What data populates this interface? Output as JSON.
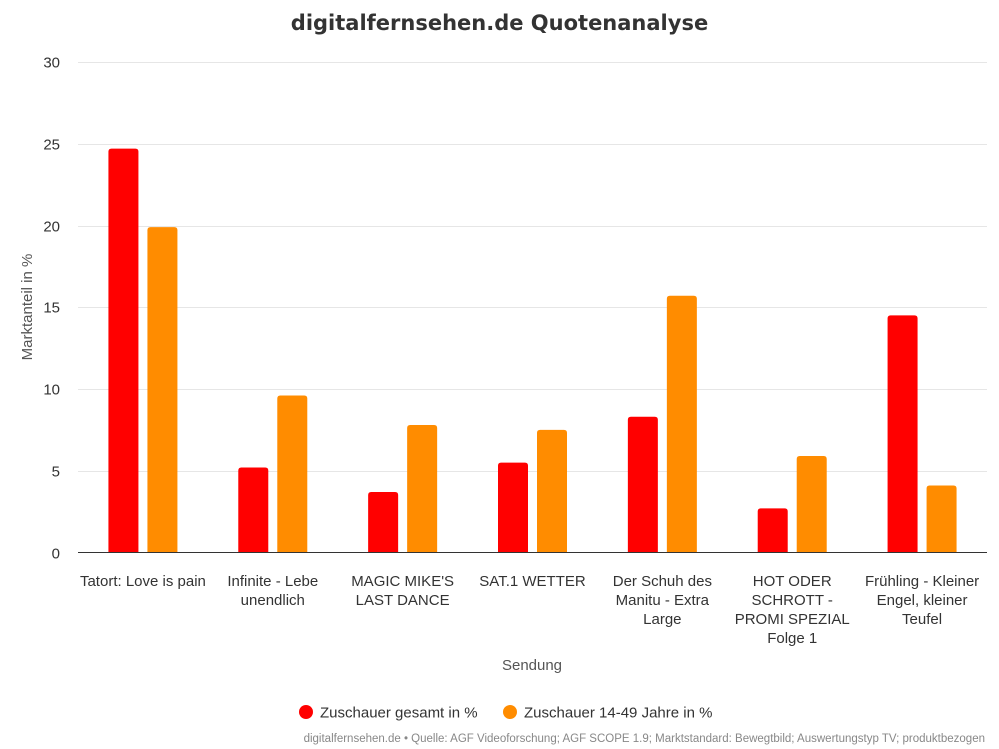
{
  "chart_data": {
    "type": "bar",
    "title": "digitalfernsehen.de Quotenanalyse",
    "xlabel": "Sendung",
    "ylabel": "Marktanteil in %",
    "ylim": [
      0,
      30
    ],
    "yticks": [
      0,
      5,
      10,
      15,
      20,
      25,
      30
    ],
    "grid": true,
    "legend_position": "bottom-center",
    "categories": [
      "Tatort: Love is pain",
      "Infinite - Lebe unendlich",
      "MAGIC MIKE'S LAST DANCE",
      "SAT.1 WETTER",
      "Der Schuh des Manitu - Extra Large",
      "HOT ODER SCHROTT - PROMI SPEZIAL Folge 1",
      "Frühling - Kleiner Engel, kleiner Teufel"
    ],
    "category_lines": [
      [
        "Tatort: Love is pain"
      ],
      [
        "Infinite - Lebe",
        "unendlich"
      ],
      [
        "MAGIC MIKE'S",
        "LAST DANCE"
      ],
      [
        "SAT.1 WETTER"
      ],
      [
        "Der Schuh des",
        "Manitu - Extra",
        "Large"
      ],
      [
        "HOT ODER",
        "SCHROTT -",
        "PROMI SPEZIAL",
        "Folge 1"
      ],
      [
        "Frühling - Kleiner",
        "Engel, kleiner",
        "Teufel"
      ]
    ],
    "series": [
      {
        "name": "Zuschauer gesamt in %",
        "color": "#ff0000",
        "values": [
          24.7,
          5.2,
          3.7,
          5.5,
          8.3,
          2.7,
          14.5
        ]
      },
      {
        "name": "Zuschauer 14-49 Jahre in %",
        "color": "#ff8c00",
        "values": [
          19.9,
          9.6,
          7.8,
          7.5,
          15.7,
          5.9,
          4.1
        ]
      }
    ],
    "credits": "digitalfernsehen.de • Quelle: AGF Videoforschung; AGF SCOPE 1.9; Marktstandard: Bewegtbild; Auswertungstyp TV; produktbezogen"
  }
}
